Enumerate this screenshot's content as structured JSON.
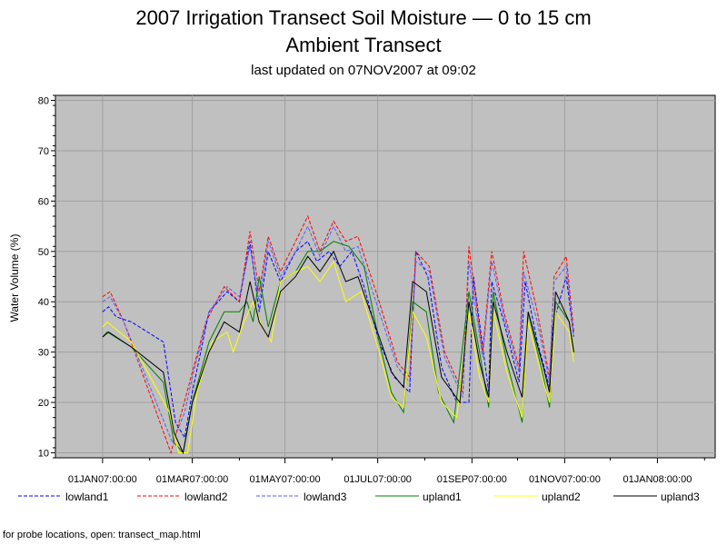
{
  "chart_data": {
    "type": "line",
    "title": "2007 Irrigation Transect Soil Moisture — 0 to 15 cm",
    "subtitle_line": "Ambient Transect",
    "updated": "last updated on 07NOV2007 at 09:02",
    "ylabel": "Water Volume (%)",
    "xlabel": "",
    "ylim": [
      9,
      81
    ],
    "yticks": [
      10,
      20,
      30,
      40,
      50,
      60,
      70,
      80
    ],
    "xlim": [
      "2006-12-01",
      "2008-02-08"
    ],
    "xticks": [
      {
        "date": "2007-01-01",
        "label": "01JAN07:00:00"
      },
      {
        "date": "2007-03-01",
        "label": "01MAR07:00:00"
      },
      {
        "date": "2007-05-01",
        "label": "01MAY07:00:00"
      },
      {
        "date": "2007-07-01",
        "label": "01JUL07:00:00"
      },
      {
        "date": "2007-09-01",
        "label": "01SEP07:00:00"
      },
      {
        "date": "2007-11-01",
        "label": "01NOV07:00:00"
      },
      {
        "date": "2008-01-01",
        "label": "01JAN08:00:00"
      }
    ],
    "grid": true,
    "background": "#c0c0c0",
    "legend_position": "bottom",
    "series": [
      {
        "name": "lowland1",
        "color": "#0000ff",
        "style": "dashed",
        "points": [
          [
            "2007-01-01",
            38
          ],
          [
            "2007-01-05",
            39
          ],
          [
            "2007-01-10",
            37
          ],
          [
            "2007-01-20",
            36
          ],
          [
            "2007-02-10",
            32
          ],
          [
            "2007-02-18",
            16
          ],
          [
            "2007-02-24",
            13
          ],
          [
            "2007-03-01",
            22
          ],
          [
            "2007-03-12",
            38
          ],
          [
            "2007-03-24",
            42
          ],
          [
            "2007-04-01",
            40
          ],
          [
            "2007-04-08",
            52
          ],
          [
            "2007-04-14",
            38
          ],
          [
            "2007-04-20",
            50
          ],
          [
            "2007-04-28",
            44
          ],
          [
            "2007-05-08",
            50
          ],
          [
            "2007-05-16",
            52
          ],
          [
            "2007-05-22",
            48
          ],
          [
            "2007-05-30",
            50
          ],
          [
            "2007-06-06",
            47
          ],
          [
            "2007-06-14",
            50
          ],
          [
            "2007-06-22",
            43
          ],
          [
            "2007-07-02",
            32
          ],
          [
            "2007-07-12",
            25
          ],
          [
            "2007-07-22",
            22
          ],
          [
            "2007-07-26",
            50
          ],
          [
            "2007-08-03",
            45
          ],
          [
            "2007-08-12",
            27
          ],
          [
            "2007-08-22",
            20
          ],
          [
            "2007-08-30",
            20
          ],
          [
            "2007-09-02",
            45
          ],
          [
            "2007-09-12",
            22
          ],
          [
            "2007-09-14",
            44
          ],
          [
            "2007-09-22",
            36
          ],
          [
            "2007-10-02",
            24
          ],
          [
            "2007-10-06",
            44
          ],
          [
            "2007-10-14",
            32
          ],
          [
            "2007-10-22",
            23
          ],
          [
            "2007-10-24",
            35
          ],
          [
            "2007-11-02",
            45
          ],
          [
            "2007-11-07",
            33
          ]
        ]
      },
      {
        "name": "lowland2",
        "color": "#ff0000",
        "style": "dashed",
        "points": [
          [
            "2007-01-01",
            41
          ],
          [
            "2007-01-06",
            42
          ],
          [
            "2007-01-15",
            36
          ],
          [
            "2007-02-15",
            10
          ],
          [
            "2007-02-22",
            18
          ],
          [
            "2007-03-01",
            26
          ],
          [
            "2007-03-10",
            36
          ],
          [
            "2007-03-22",
            43
          ],
          [
            "2007-04-01",
            40
          ],
          [
            "2007-04-08",
            54
          ],
          [
            "2007-04-14",
            42
          ],
          [
            "2007-04-20",
            53
          ],
          [
            "2007-04-28",
            46
          ],
          [
            "2007-05-08",
            52
          ],
          [
            "2007-05-16",
            57
          ],
          [
            "2007-05-24",
            50
          ],
          [
            "2007-06-02",
            56
          ],
          [
            "2007-06-10",
            52
          ],
          [
            "2007-06-18",
            53
          ],
          [
            "2007-07-02",
            40
          ],
          [
            "2007-07-14",
            28
          ],
          [
            "2007-07-22",
            25
          ],
          [
            "2007-07-26",
            50
          ],
          [
            "2007-08-04",
            47
          ],
          [
            "2007-08-14",
            30
          ],
          [
            "2007-08-26",
            22
          ],
          [
            "2007-08-30",
            51
          ],
          [
            "2007-09-08",
            30
          ],
          [
            "2007-09-14",
            50
          ],
          [
            "2007-09-22",
            38
          ],
          [
            "2007-10-02",
            27
          ],
          [
            "2007-10-05",
            50
          ],
          [
            "2007-10-14",
            38
          ],
          [
            "2007-10-22",
            25
          ],
          [
            "2007-10-25",
            45
          ],
          [
            "2007-11-02",
            49
          ],
          [
            "2007-11-07",
            34
          ]
        ]
      },
      {
        "name": "lowland3",
        "color": "#5a5aff",
        "style": "dashed",
        "points": [
          [
            "2007-01-01",
            40
          ],
          [
            "2007-01-06",
            41
          ],
          [
            "2007-01-15",
            36
          ],
          [
            "2007-02-16",
            12
          ],
          [
            "2007-02-24",
            18
          ],
          [
            "2007-03-01",
            25
          ],
          [
            "2007-03-12",
            38
          ],
          [
            "2007-03-24",
            43
          ],
          [
            "2007-04-01",
            41
          ],
          [
            "2007-04-08",
            51
          ],
          [
            "2007-04-14",
            40
          ],
          [
            "2007-04-20",
            52
          ],
          [
            "2007-04-28",
            45
          ],
          [
            "2007-05-08",
            50
          ],
          [
            "2007-05-16",
            55
          ],
          [
            "2007-05-24",
            49
          ],
          [
            "2007-06-02",
            55
          ],
          [
            "2007-06-10",
            50
          ],
          [
            "2007-06-18",
            51
          ],
          [
            "2007-07-02",
            38
          ],
          [
            "2007-07-14",
            27
          ],
          [
            "2007-07-22",
            24
          ],
          [
            "2007-07-26",
            48
          ],
          [
            "2007-08-04",
            46
          ],
          [
            "2007-08-14",
            29
          ],
          [
            "2007-08-26",
            21
          ],
          [
            "2007-08-30",
            48
          ],
          [
            "2007-09-08",
            29
          ],
          [
            "2007-09-14",
            48
          ],
          [
            "2007-09-22",
            37
          ],
          [
            "2007-10-02",
            26
          ],
          [
            "2007-10-05",
            46
          ],
          [
            "2007-10-14",
            36
          ],
          [
            "2007-10-22",
            24
          ],
          [
            "2007-10-25",
            44
          ],
          [
            "2007-11-02",
            47
          ],
          [
            "2007-11-07",
            33
          ]
        ]
      },
      {
        "name": "upland1",
        "color": "#008000",
        "style": "solid",
        "points": [
          [
            "2007-01-01",
            33
          ],
          [
            "2007-01-04",
            34
          ],
          [
            "2007-01-20",
            31
          ],
          [
            "2007-02-10",
            24
          ],
          [
            "2007-02-17",
            12
          ],
          [
            "2007-02-23",
            10
          ],
          [
            "2007-03-01",
            20
          ],
          [
            "2007-03-12",
            32
          ],
          [
            "2007-03-22",
            38
          ],
          [
            "2007-04-01",
            38
          ],
          [
            "2007-04-06",
            40
          ],
          [
            "2007-04-10",
            36
          ],
          [
            "2007-04-14",
            45
          ],
          [
            "2007-04-20",
            35
          ],
          [
            "2007-04-28",
            44
          ],
          [
            "2007-05-08",
            46
          ],
          [
            "2007-05-16",
            50
          ],
          [
            "2007-05-24",
            50
          ],
          [
            "2007-06-02",
            52
          ],
          [
            "2007-06-12",
            51
          ],
          [
            "2007-06-22",
            47
          ],
          [
            "2007-07-02",
            32
          ],
          [
            "2007-07-10",
            22
          ],
          [
            "2007-07-18",
            18
          ],
          [
            "2007-07-24",
            40
          ],
          [
            "2007-08-02",
            38
          ],
          [
            "2007-08-10",
            22
          ],
          [
            "2007-08-20",
            16
          ],
          [
            "2007-08-30",
            42
          ],
          [
            "2007-09-06",
            30
          ],
          [
            "2007-09-12",
            19
          ],
          [
            "2007-09-15",
            42
          ],
          [
            "2007-09-24",
            28
          ],
          [
            "2007-10-04",
            16
          ],
          [
            "2007-10-08",
            38
          ],
          [
            "2007-10-18",
            25
          ],
          [
            "2007-10-22",
            19
          ],
          [
            "2007-10-26",
            40
          ],
          [
            "2007-11-04",
            36
          ],
          [
            "2007-11-07",
            30
          ]
        ]
      },
      {
        "name": "upland2",
        "color": "#ffff00",
        "style": "solid",
        "points": [
          [
            "2007-01-01",
            35
          ],
          [
            "2007-01-04",
            36
          ],
          [
            "2007-01-20",
            32
          ],
          [
            "2007-02-14",
            18
          ],
          [
            "2007-02-20",
            10
          ],
          [
            "2007-02-26",
            10
          ],
          [
            "2007-03-04",
            22
          ],
          [
            "2007-03-14",
            32
          ],
          [
            "2007-03-24",
            34
          ],
          [
            "2007-03-28",
            30
          ],
          [
            "2007-04-04",
            36
          ],
          [
            "2007-04-10",
            40
          ],
          [
            "2007-04-16",
            35
          ],
          [
            "2007-04-22",
            32
          ],
          [
            "2007-04-28",
            44
          ],
          [
            "2007-05-08",
            46
          ],
          [
            "2007-05-16",
            47
          ],
          [
            "2007-05-24",
            44
          ],
          [
            "2007-06-02",
            48
          ],
          [
            "2007-06-10",
            40
          ],
          [
            "2007-06-20",
            42
          ],
          [
            "2007-07-02",
            30
          ],
          [
            "2007-07-10",
            21
          ],
          [
            "2007-07-18",
            19
          ],
          [
            "2007-07-24",
            38
          ],
          [
            "2007-08-02",
            33
          ],
          [
            "2007-08-12",
            20
          ],
          [
            "2007-08-22",
            17
          ],
          [
            "2007-08-30",
            38
          ],
          [
            "2007-09-06",
            25
          ],
          [
            "2007-09-12",
            20
          ],
          [
            "2007-09-15",
            38
          ],
          [
            "2007-09-24",
            26
          ],
          [
            "2007-10-04",
            17
          ],
          [
            "2007-10-08",
            36
          ],
          [
            "2007-10-18",
            24
          ],
          [
            "2007-10-22",
            20
          ],
          [
            "2007-10-26",
            38
          ],
          [
            "2007-11-04",
            34
          ],
          [
            "2007-11-07",
            28
          ]
        ]
      },
      {
        "name": "upland3",
        "color": "#000000",
        "style": "solid",
        "points": [
          [
            "2007-01-01",
            33
          ],
          [
            "2007-01-05",
            34
          ],
          [
            "2007-01-20",
            31
          ],
          [
            "2007-02-10",
            26
          ],
          [
            "2007-02-17",
            14
          ],
          [
            "2007-02-23",
            10
          ],
          [
            "2007-03-01",
            20
          ],
          [
            "2007-03-12",
            30
          ],
          [
            "2007-03-22",
            36
          ],
          [
            "2007-04-01",
            34
          ],
          [
            "2007-04-08",
            44
          ],
          [
            "2007-04-14",
            36
          ],
          [
            "2007-04-20",
            33
          ],
          [
            "2007-04-28",
            42
          ],
          [
            "2007-05-08",
            45
          ],
          [
            "2007-05-16",
            49
          ],
          [
            "2007-05-24",
            46
          ],
          [
            "2007-06-02",
            50
          ],
          [
            "2007-06-10",
            44
          ],
          [
            "2007-06-18",
            45
          ],
          [
            "2007-07-02",
            33
          ],
          [
            "2007-07-10",
            26
          ],
          [
            "2007-07-18",
            23
          ],
          [
            "2007-07-24",
            44
          ],
          [
            "2007-08-02",
            42
          ],
          [
            "2007-08-12",
            25
          ],
          [
            "2007-08-24",
            20
          ],
          [
            "2007-08-30",
            40
          ],
          [
            "2007-09-06",
            28
          ],
          [
            "2007-09-12",
            21
          ],
          [
            "2007-09-15",
            40
          ],
          [
            "2007-09-24",
            30
          ],
          [
            "2007-10-04",
            21
          ],
          [
            "2007-10-08",
            38
          ],
          [
            "2007-10-18",
            27
          ],
          [
            "2007-10-22",
            22
          ],
          [
            "2007-10-26",
            42
          ],
          [
            "2007-11-04",
            36
          ],
          [
            "2007-11-07",
            30
          ]
        ]
      }
    ]
  },
  "footnote": "for probe locations, open: transect_map.html"
}
